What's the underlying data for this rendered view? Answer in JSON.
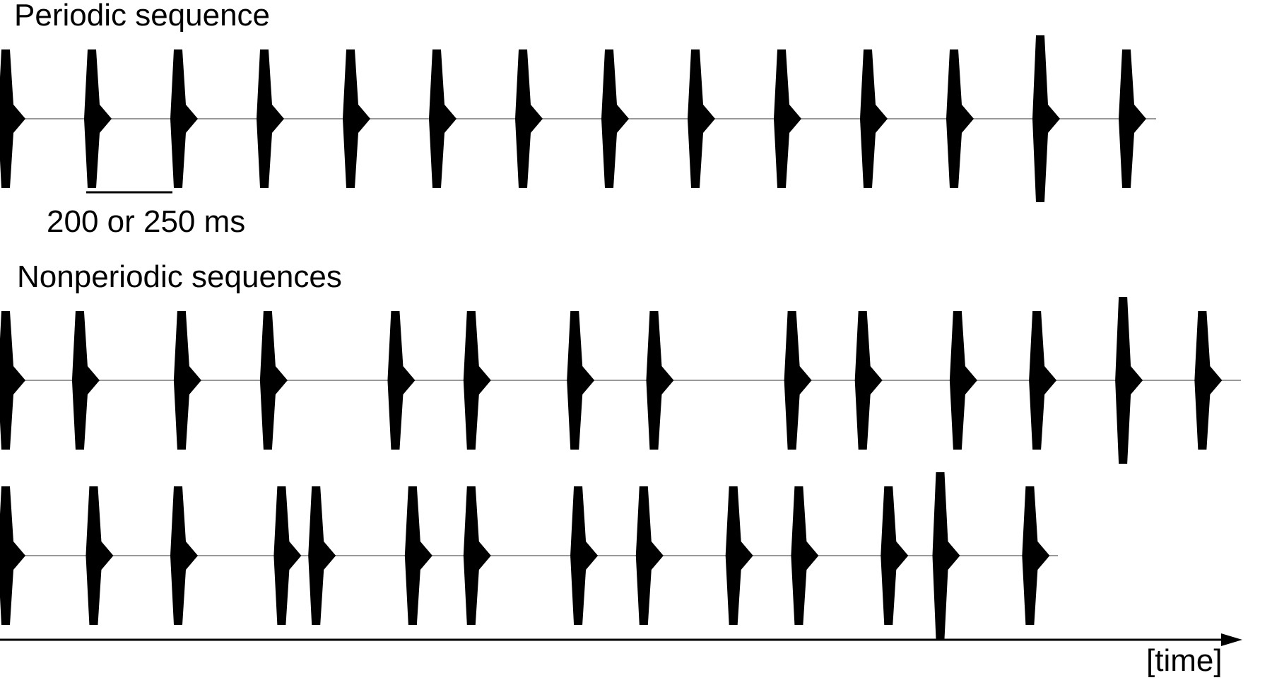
{
  "labels": {
    "periodic_title": "Periodic sequence",
    "scale_label": "200 or 250 ms",
    "nonperiodic_title": "Nonperiodic sequences",
    "time_axis": "[time]"
  },
  "colors": {
    "ink": "#000000",
    "baseline": "#999999"
  },
  "sequences": [
    {
      "kind": "periodic",
      "onsets_ms": [
        0,
        250,
        500,
        750,
        1000,
        1250,
        1500,
        1750,
        2000,
        2250,
        2500,
        2750,
        3000,
        3250
      ],
      "accented_index": 12
    },
    {
      "kind": "nonperiodic",
      "onsets_ms": [
        0,
        215,
        510,
        760,
        1130,
        1350,
        1650,
        1880,
        2280,
        2485,
        2760,
        2990,
        3240,
        3470
      ],
      "accented_index": 12
    },
    {
      "kind": "nonperiodic",
      "onsets_ms": [
        0,
        255,
        500,
        800,
        900,
        1180,
        1350,
        1660,
        1850,
        2110,
        2300,
        2560,
        2710,
        2970
      ],
      "accented_index": 12
    }
  ],
  "scale_bar_ms": 250
}
